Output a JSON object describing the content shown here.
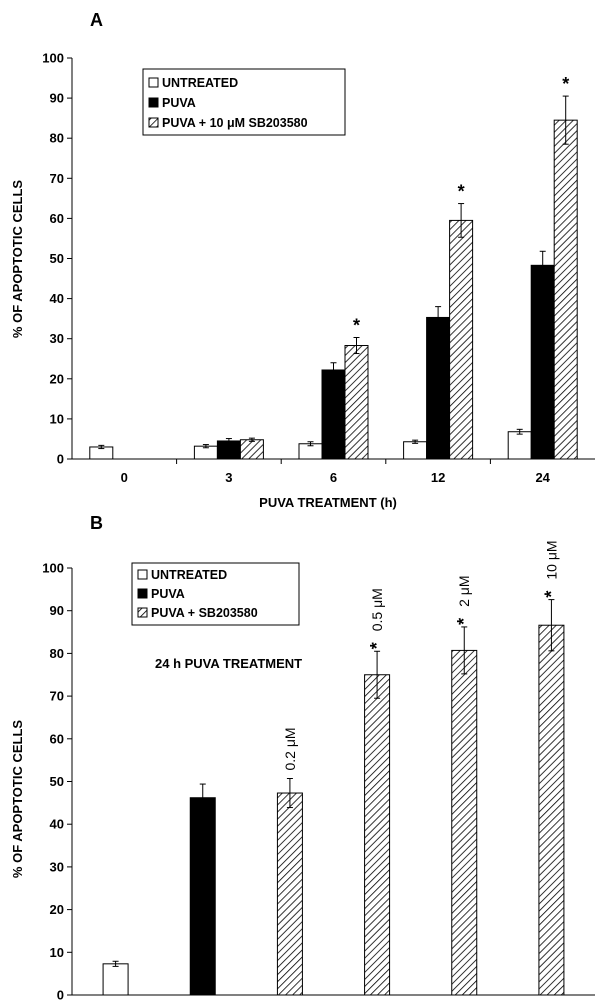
{
  "colors": {
    "untreated": "#ffffff",
    "puva": "#000000",
    "hatch": "#000000",
    "axis": "#000000"
  },
  "chart_data": [
    {
      "panel": "A",
      "type": "bar",
      "xlabel": "PUVA TREATMENT (h)",
      "ylabel": "% OF APOPTOTIC CELLS",
      "ylim": [
        0,
        100
      ],
      "yticks": [
        "0",
        "10",
        "20",
        "30",
        "40",
        "50",
        "60",
        "70",
        "80",
        "90",
        "100"
      ],
      "categories": [
        "0",
        "3",
        "6",
        "12",
        "24"
      ],
      "legend_placement": "top-left",
      "legend": [
        "UNTREATED",
        "PUVA",
        "PUVA + 10 μM SB203580"
      ],
      "series": [
        {
          "name": "UNTREATED",
          "fill": "white",
          "values": [
            3.0,
            3.2,
            3.8,
            4.3,
            6.8
          ],
          "errors": [
            0.4,
            0.4,
            0.5,
            0.4,
            0.6
          ]
        },
        {
          "name": "PUVA",
          "fill": "black",
          "values": [
            null,
            4.5,
            22.2,
            35.3,
            48.3
          ],
          "errors": [
            null,
            0.6,
            1.8,
            2.7,
            3.5
          ]
        },
        {
          "name": "PUVA + 10 μM SB203580",
          "fill": "hatch",
          "values": [
            null,
            4.8,
            28.3,
            59.5,
            84.5
          ],
          "errors": [
            null,
            0.4,
            2.0,
            4.2,
            6.0
          ]
        }
      ],
      "significance": [
        "",
        "",
        "*",
        "*",
        "*"
      ]
    },
    {
      "panel": "B",
      "type": "bar",
      "xlabel": "",
      "ylabel": "% OF APOPTOTIC CELLS",
      "ylim": [
        0,
        100
      ],
      "yticks": [
        "0",
        "10",
        "20",
        "30",
        "40",
        "50",
        "60",
        "70",
        "80",
        "90",
        "100"
      ],
      "legend_placement": "top-left",
      "legend": [
        "UNTREATED",
        "PUVA",
        "PUVA + SB203580"
      ],
      "annotation": "24 h PUVA TREATMENT",
      "bars": [
        {
          "fill": "white",
          "value": 7.3,
          "error": 0.6,
          "label": "",
          "star": ""
        },
        {
          "fill": "black",
          "value": 46.2,
          "error": 3.2,
          "label": "",
          "star": ""
        },
        {
          "fill": "hatch",
          "value": 47.3,
          "error": 3.4,
          "label": "0.2 μM",
          "star": ""
        },
        {
          "fill": "hatch",
          "value": 75.0,
          "error": 5.5,
          "label": "0.5 μM",
          "star": "*"
        },
        {
          "fill": "hatch",
          "value": 80.7,
          "error": 5.5,
          "label": "2 μM",
          "star": "*"
        },
        {
          "fill": "hatch",
          "value": 86.6,
          "error": 6.0,
          "label": "10 μM",
          "star": "*"
        }
      ]
    }
  ]
}
